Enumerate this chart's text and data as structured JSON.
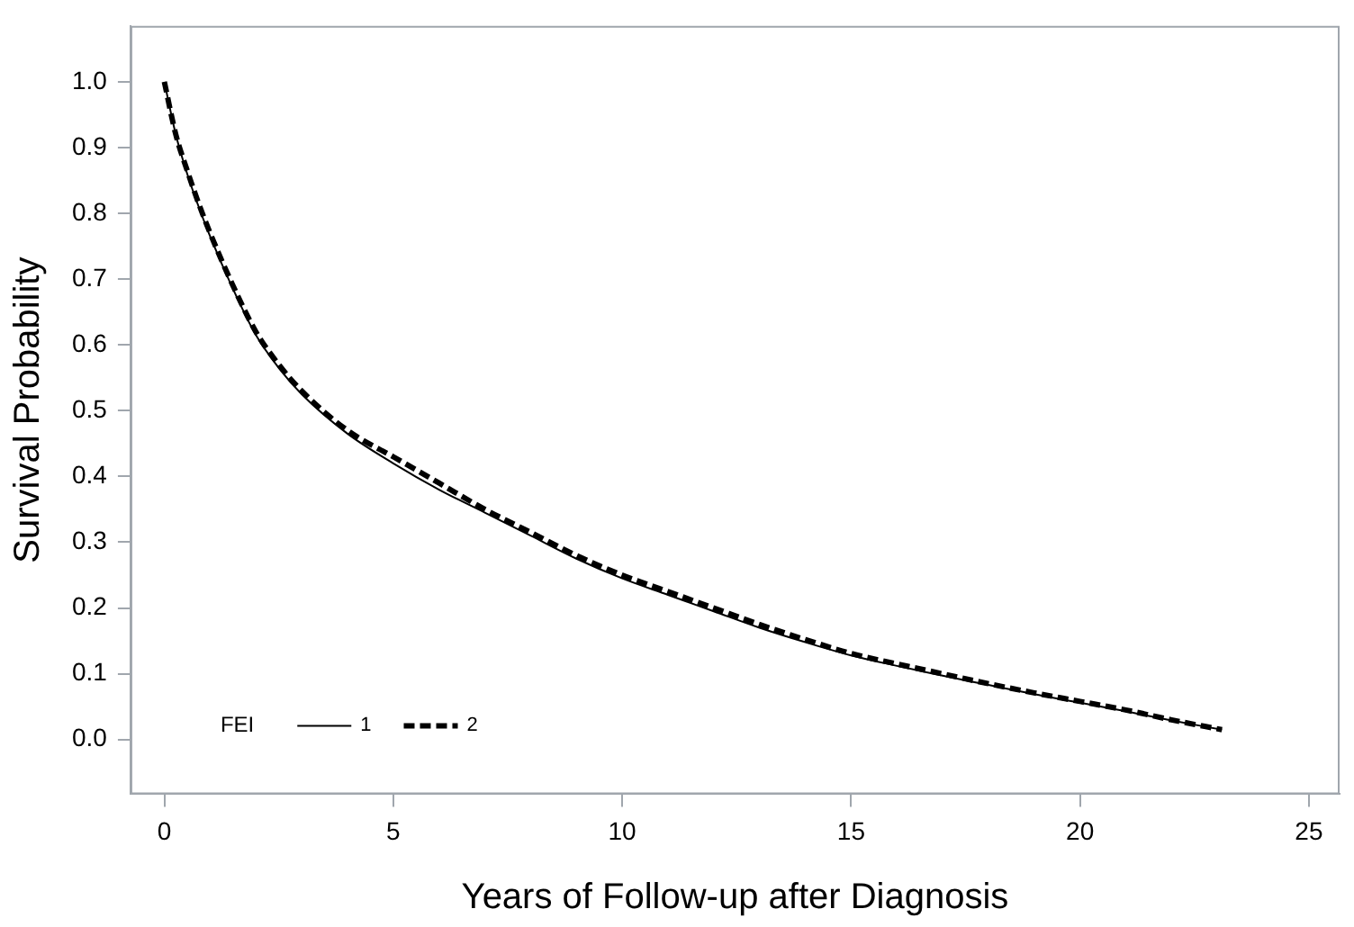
{
  "chart_data": {
    "type": "line",
    "xlabel": "Years of Follow-up after Diagnosis",
    "ylabel": "Survival Probability",
    "legend_title": "FEI",
    "legend": "bottom left",
    "grid": false,
    "marker": "none",
    "x": [
      0,
      0.25,
      0.5,
      0.75,
      1,
      1.5,
      2,
      2.5,
      3,
      4,
      5,
      6,
      7,
      8,
      9,
      10,
      11,
      12,
      13,
      14,
      15,
      16,
      17,
      18,
      19,
      20,
      21,
      22,
      23.1
    ],
    "xlim": [
      -0.74,
      25.67
    ],
    "xticks": [
      0,
      5,
      10,
      15,
      20,
      25
    ],
    "ylim": [
      -0.083,
      1.085
    ],
    "yticks": [
      {
        "value": 0,
        "label": "0.0"
      },
      0.1,
      0.2,
      0.3,
      0.4,
      0.5,
      0.6,
      0.7,
      0.8,
      0.9,
      {
        "value": 1,
        "label": "1.0"
      }
    ],
    "series": [
      {
        "name": "1",
        "color": "#000000",
        "line_style": "solid",
        "values": [
          1.0,
          0.92,
          0.86,
          0.81,
          0.765,
          0.685,
          0.615,
          0.565,
          0.525,
          0.465,
          0.42,
          0.38,
          0.345,
          0.31,
          0.275,
          0.245,
          0.22,
          0.195,
          0.17,
          0.148,
          0.128,
          0.112,
          0.097,
          0.083,
          0.069,
          0.056,
          0.043,
          0.029,
          0.015
        ]
      },
      {
        "name": "2",
        "color": "#000000",
        "line_style": "dashed",
        "values": [
          1.0,
          0.92,
          0.865,
          0.815,
          0.77,
          0.69,
          0.62,
          0.57,
          0.53,
          0.47,
          0.43,
          0.39,
          0.35,
          0.315,
          0.28,
          0.25,
          0.225,
          0.2,
          0.175,
          0.152,
          0.131,
          0.115,
          0.1,
          0.085,
          0.071,
          0.058,
          0.045,
          0.03,
          0.015
        ]
      }
    ]
  }
}
